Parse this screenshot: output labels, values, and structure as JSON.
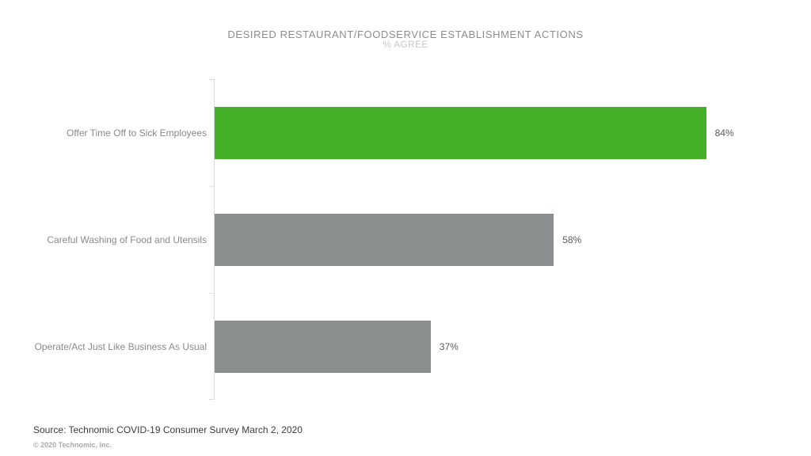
{
  "chart": {
    "title": "DESIRED RESTAURANT/FOODSERVICE ESTABLISHMENT ACTIONS",
    "subtitle": "% AGREE"
  },
  "chart_data": {
    "type": "bar",
    "orientation": "horizontal",
    "title": "DESIRED RESTAURANT/FOODSERVICE ESTABLISHMENT ACTIONS",
    "subtitle": "% AGREE",
    "categories": [
      "Offer Time Off to Sick Employees",
      "Careful Washing of Food and Utensils",
      "Operate/Act Just Like Business As Usual"
    ],
    "values": [
      84,
      58,
      37
    ],
    "value_labels": [
      "84%",
      "58%",
      "37%"
    ],
    "bar_colors": [
      "#46b02a",
      "#8a8e8f",
      "#8a8e8f"
    ],
    "highlight_color": "#46b02a",
    "default_color": "#8a8e8f",
    "axis_color": "#d9d9d9",
    "xlim": [
      0,
      100
    ],
    "grid": false,
    "legend": false
  },
  "footer": {
    "source": "Source: Technomic COVID-19 Consumer Survey March 2, 2020",
    "copyright": "© 2020 Technomic, Inc."
  }
}
